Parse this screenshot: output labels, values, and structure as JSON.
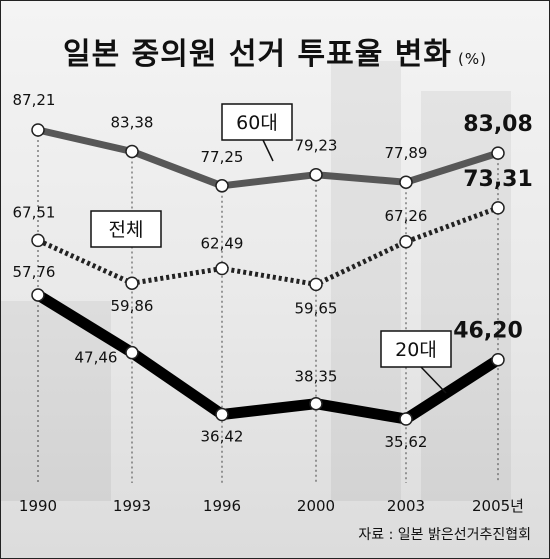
{
  "title": "일본 중의원 선거 투표율 변화",
  "unit": "(%)",
  "source": "자료 : 일본 밝은선거추진협회",
  "chart_data": {
    "type": "line",
    "categories": [
      "1990",
      "1993",
      "1996",
      "2000",
      "2003",
      "2005년"
    ],
    "ylim": [
      30,
      90
    ],
    "grid": false,
    "series": [
      {
        "name": "60대",
        "values": [
          87.21,
          83.38,
          77.25,
          79.23,
          77.89,
          83.08
        ],
        "labels": [
          "87,21",
          "83,38",
          "77,25",
          "79,23",
          "77,89",
          "83,08"
        ],
        "style": "gray",
        "color": "#555555"
      },
      {
        "name": "전체",
        "values": [
          67.51,
          59.86,
          62.49,
          59.65,
          67.26,
          73.31
        ],
        "labels": [
          "67,51",
          "59,86",
          "62,49",
          "59,65",
          "67,26",
          "73,31"
        ],
        "style": "dashed",
        "color": "#111111"
      },
      {
        "name": "20대",
        "values": [
          57.76,
          47.46,
          36.42,
          38.35,
          35.62,
          46.2
        ],
        "labels": [
          "57,76",
          "47,46",
          "36,42",
          "38,35",
          "35,62",
          "46,20"
        ],
        "style": "thick",
        "color": "#000000"
      }
    ]
  }
}
